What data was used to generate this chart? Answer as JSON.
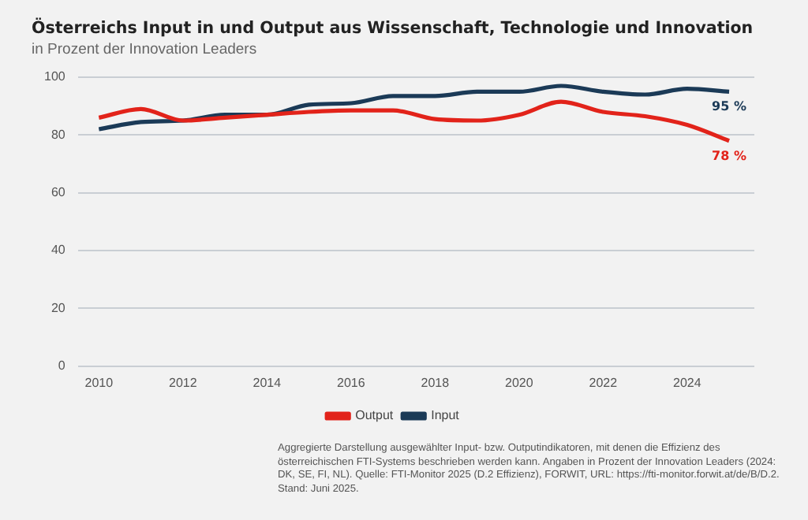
{
  "chart_data": {
    "type": "line",
    "title": "Österreichs Input in und Output aus Wissenschaft, Technologie und Innovation",
    "subtitle": "in Prozent der Innovation Leaders",
    "x": [
      2010,
      2011,
      2012,
      2013,
      2014,
      2015,
      2016,
      2017,
      2018,
      2019,
      2020,
      2021,
      2022,
      2023,
      2024,
      2025
    ],
    "series": [
      {
        "name": "Output",
        "color": "#e2231a",
        "values": [
          86,
          89,
          85,
          86,
          87,
          88,
          88.5,
          88.5,
          85.5,
          85,
          87,
          91.5,
          88,
          86.5,
          83.5,
          78
        ],
        "value_labels": [
          null,
          null,
          null,
          null,
          null,
          null,
          null,
          null,
          null,
          null,
          null,
          null,
          null,
          null,
          null,
          "78 %"
        ]
      },
      {
        "name": "Input",
        "color": "#1b3a57",
        "values": [
          82,
          84.5,
          85,
          87,
          87,
          90.5,
          91,
          93.5,
          93.5,
          95,
          95,
          97,
          95,
          94,
          96,
          95
        ],
        "value_labels": [
          null,
          null,
          null,
          null,
          null,
          null,
          null,
          null,
          null,
          null,
          null,
          null,
          null,
          null,
          null,
          "95 %"
        ]
      }
    ],
    "xlim": [
      2009.5,
      2025.6
    ],
    "xticks": [
      2010,
      2012,
      2014,
      2016,
      2018,
      2020,
      2022,
      2024
    ],
    "ylim": [
      0,
      100
    ],
    "yticks": [
      0,
      20,
      40,
      60,
      80,
      100
    ],
    "grid": "y",
    "legend": "bottom",
    "marker": "none",
    "line_style": "solid",
    "annotations": [
      "Aggregierte Darstellung ausgewählter Input- bzw. Outputindikatoren, mit denen die Effizienz des österreichischen FTI-Systems beschrieben werden kann. Angaben in Prozent der Innovation Leaders (2024: DK, SE, FI, NL). Quelle: FTI-Monitor 2025 (D.2 Effizienz), FORWIT, URL: https://fti-monitor.forwit.at/de/B/D.2. Stand: Juni 2025."
    ]
  }
}
